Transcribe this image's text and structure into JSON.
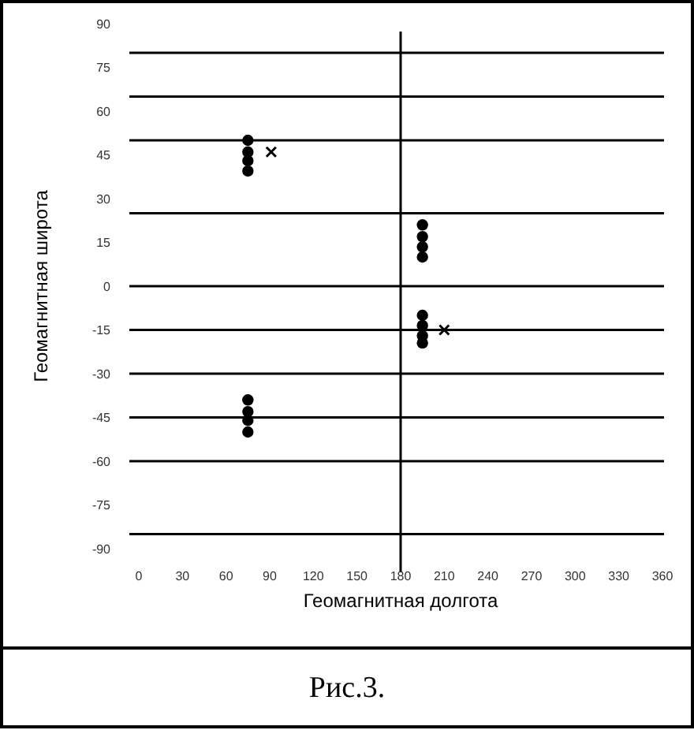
{
  "chart_data": {
    "type": "scatter",
    "xlabel": "Геомагнитная долгота",
    "ylabel": "Геомагнитная широта",
    "annotations": [
      "Рис.3."
    ],
    "xlim": [
      0,
      360
    ],
    "xticks": [
      0,
      30,
      60,
      90,
      120,
      150,
      180,
      210,
      240,
      270,
      300,
      330,
      360
    ],
    "ylim": [
      -90,
      90
    ],
    "yticks": [
      -90,
      -75,
      -60,
      -45,
      -30,
      -15,
      0,
      15,
      30,
      45,
      60,
      75,
      90
    ],
    "series": [
      {
        "color": "#000000",
        "marker": "circle",
        "x": [
          75,
          75,
          75,
          75,
          195,
          195,
          195,
          195,
          195,
          195,
          195,
          195,
          75,
          75,
          75,
          75
        ],
        "values": [
          50,
          46,
          43,
          39.5,
          21,
          17,
          13.5,
          10,
          -10,
          -13.5,
          -17,
          -19.5,
          -39,
          -43,
          -46,
          -50
        ]
      },
      {
        "color": "#000000",
        "marker": "cross",
        "x": [
          91,
          210
        ],
        "values": [
          46,
          -15
        ]
      }
    ],
    "ref_lines": [
      {
        "axis": "y",
        "value": 80
      },
      {
        "axis": "y",
        "value": 65
      },
      {
        "axis": "y",
        "value": 50
      },
      {
        "axis": "y",
        "value": 25
      },
      {
        "axis": "y",
        "value": 0
      },
      {
        "axis": "y",
        "value": -15
      },
      {
        "axis": "y",
        "value": -30
      },
      {
        "axis": "y",
        "value": -45
      },
      {
        "axis": "y",
        "value": -60
      },
      {
        "axis": "y",
        "value": -85
      },
      {
        "axis": "x",
        "value": 180
      }
    ]
  }
}
